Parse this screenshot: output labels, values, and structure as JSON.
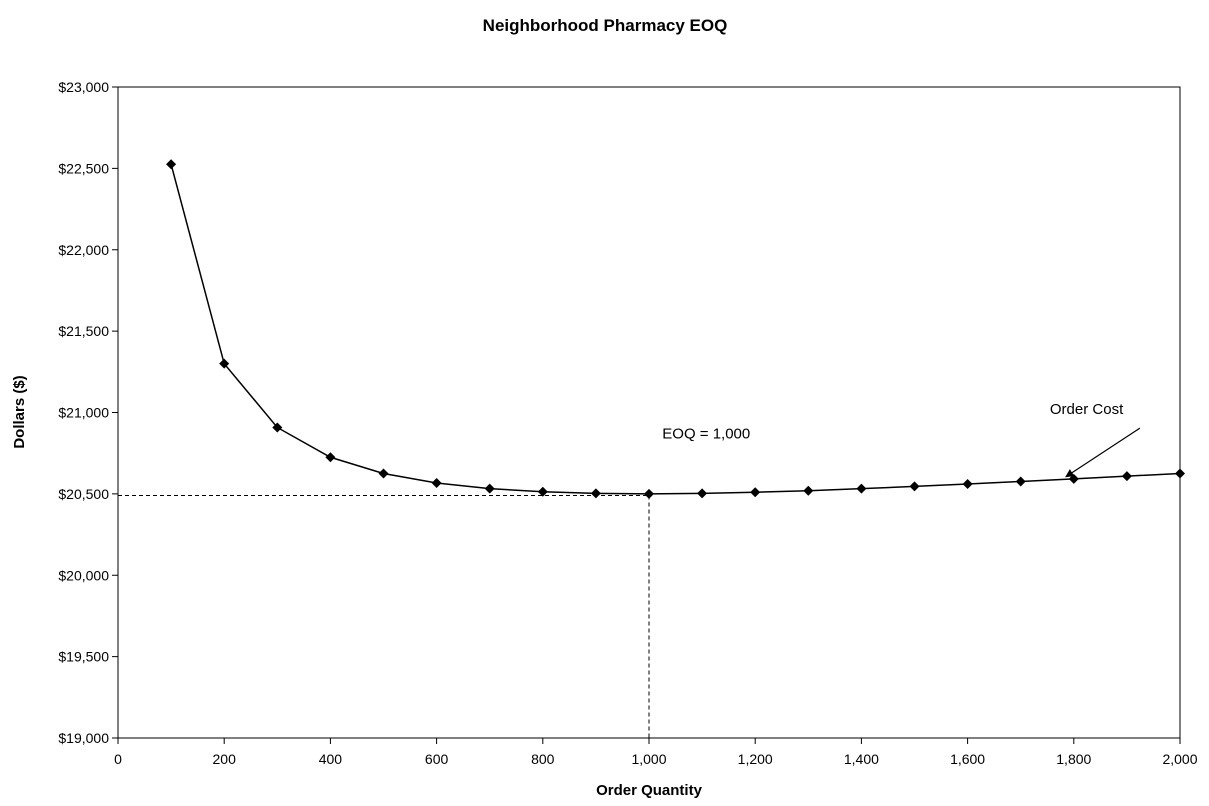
{
  "chart_data": {
    "type": "line",
    "title": "Neighborhood Pharmacy EOQ",
    "xlabel": "Order Quantity",
    "ylabel": "Dollars ($)",
    "xlim": [
      0,
      2000
    ],
    "ylim": [
      19000,
      23000
    ],
    "x_ticks": [
      0,
      200,
      400,
      600,
      800,
      1000,
      1200,
      1400,
      1600,
      1800,
      2000
    ],
    "x_tick_labels": [
      "0",
      "200",
      "400",
      "600",
      "800",
      "1,000",
      "1,200",
      "1,400",
      "1,600",
      "1,800",
      "2,000"
    ],
    "y_ticks": [
      19000,
      19500,
      20000,
      20500,
      21000,
      21500,
      22000,
      22500,
      23000
    ],
    "y_tick_labels": [
      "$19,000",
      "$19,500",
      "$20,000",
      "$20,500",
      "$21,000",
      "$21,500",
      "$22,000",
      "$22,500",
      "$23,000"
    ],
    "grid": false,
    "legend": "none",
    "series": [
      {
        "x": [
          100,
          200,
          300,
          400,
          500,
          600,
          700,
          800,
          900,
          1000,
          1100,
          1200,
          1300,
          1400,
          1500,
          1600,
          1700,
          1800,
          1900,
          2000
        ],
        "values": [
          22525,
          21300,
          20908,
          20725,
          20625,
          20567,
          20532,
          20513,
          20503,
          20500,
          20503,
          20510,
          20519,
          20532,
          20546,
          20561,
          20576,
          20592,
          20609,
          20625
        ],
        "color": "#000000",
        "marker": "diamond"
      }
    ],
    "reference_lines": {
      "x": 1000,
      "y": 20490,
      "style": "dashed"
    },
    "annotations": [
      {
        "text": "EOQ = 1,000",
        "x": 1025,
        "y": 20840
      },
      {
        "text": "Order Cost",
        "x": 1755,
        "y": 20990,
        "arrow_to": [
          1785,
          20605
        ]
      }
    ]
  }
}
